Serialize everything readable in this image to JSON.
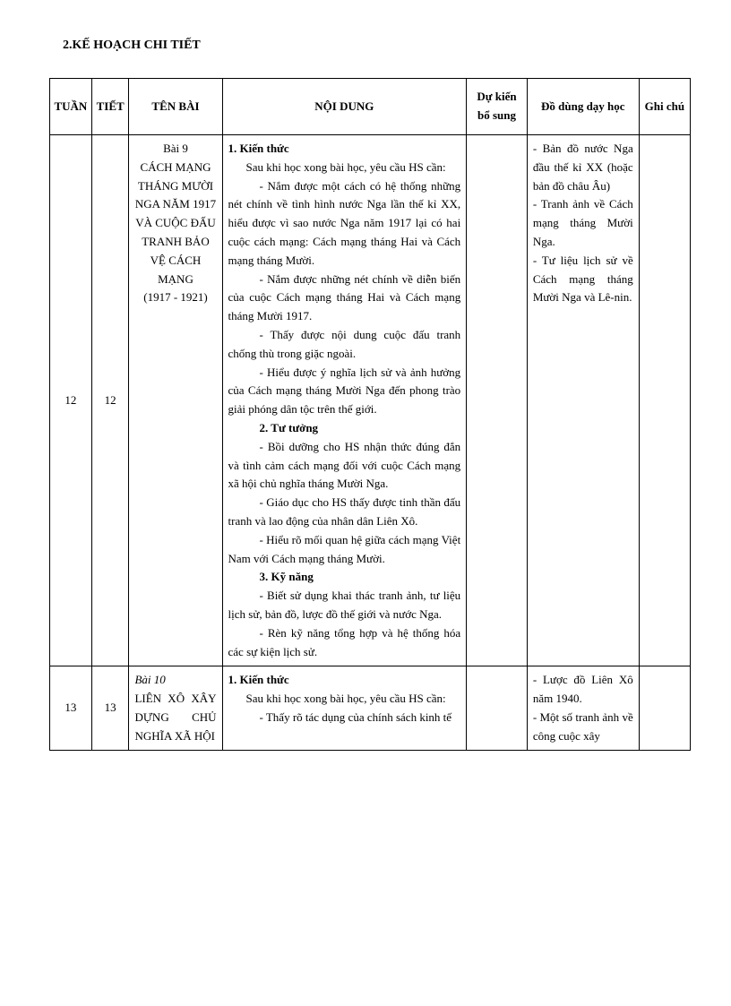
{
  "page": {
    "title": "2.KẾ HOẠCH CHI TIẾT"
  },
  "headers": {
    "tuan": "TUẦN",
    "tiet": "TIẾT",
    "tenbai": "TÊN BÀI",
    "noidung": "NỘI DUNG",
    "dukien": "Dự kiến bổ sung",
    "dodung": "Đồ dùng dạy học",
    "ghichu": "Ghi chú"
  },
  "row1": {
    "tuan": "12",
    "tiet": "12",
    "tenbai_l1": "Bài 9",
    "tenbai_l2": "CÁCH MẠNG THÁNG MƯỜI NGA NĂM 1917 VÀ CUỘC ĐẤU TRANH BẢO VỆ CÁCH MẠNG",
    "tenbai_l3": "(1917 - 1921)",
    "nd_h1": "1. Kiến thức",
    "nd_p1": "Sau khi học xong bài học, yêu cầu HS cần:",
    "nd_p2": "- Nắm được một cách có hệ thống những nét chính về tình hình nước Nga lần thế kỉ XX, hiểu được vì sao nước Nga năm 1917 lại có hai cuộc cách mạng: Cách mạng tháng Hai và Cách mạng tháng Mười.",
    "nd_p3": "- Nắm được những nét chính về diễn biến của cuộc Cách mạng tháng Hai và Cách mạng tháng Mười 1917.",
    "nd_p4": "- Thấy được nội dung cuộc đấu tranh chống thù trong giặc ngoài.",
    "nd_p5": "- Hiểu được ý nghĩa lịch sử và ảnh hưởng của Cách mạng tháng Mười Nga đến phong trào giải phóng dân tộc trên thế giới.",
    "nd_h2": "2. Tư tưởng",
    "nd_p6": "- Bồi dưỡng cho HS nhận thức đúng đắn và tình cảm cách mạng đối với cuộc Cách mạng xã hội chủ nghĩa tháng Mười Nga.",
    "nd_p7": "- Giáo dục cho HS thấy được tinh thần đấu tranh và lao động của nhân dân Liên Xô.",
    "nd_p8": "- Hiểu rõ mối quan hệ giữa cách mạng Việt Nam với Cách mạng tháng Mười.",
    "nd_h3": "3. Kỹ năng",
    "nd_p9": "- Biết sử dụng khai thác tranh ảnh, tư liệu lịch sử, bản đồ, lược đồ thế giới và nước Nga.",
    "nd_p10": "- Rèn kỹ năng tổng hợp và hệ thống hóa các sự kiện lịch sử.",
    "dd_p1": "- Bản đồ nước Nga đầu thế kỉ XX (hoặc bản đồ châu Âu)",
    "dd_p2": "- Tranh ảnh về Cách mạng tháng Mười Nga.",
    "dd_p3": "- Tư liệu lịch sử về Cách mạng tháng Mười Nga và Lê-nin."
  },
  "row2": {
    "tuan": "13",
    "tiet": "13",
    "tenbai_l1": "Bài 10",
    "tenbai_l2": "LIÊN XÔ XÂY DỰNG CHỦ NGHĨA XÃ HỘI",
    "nd_h1": "1. Kiến thức",
    "nd_p1": "Sau khi học xong bài học, yêu cầu HS cần:",
    "nd_p2": "- Thấy rõ tác dụng của chính sách kinh tế",
    "dd_p1": "- Lược đồ Liên Xô năm 1940.",
    "dd_p2": "- Một số tranh ảnh về công cuộc xây"
  }
}
